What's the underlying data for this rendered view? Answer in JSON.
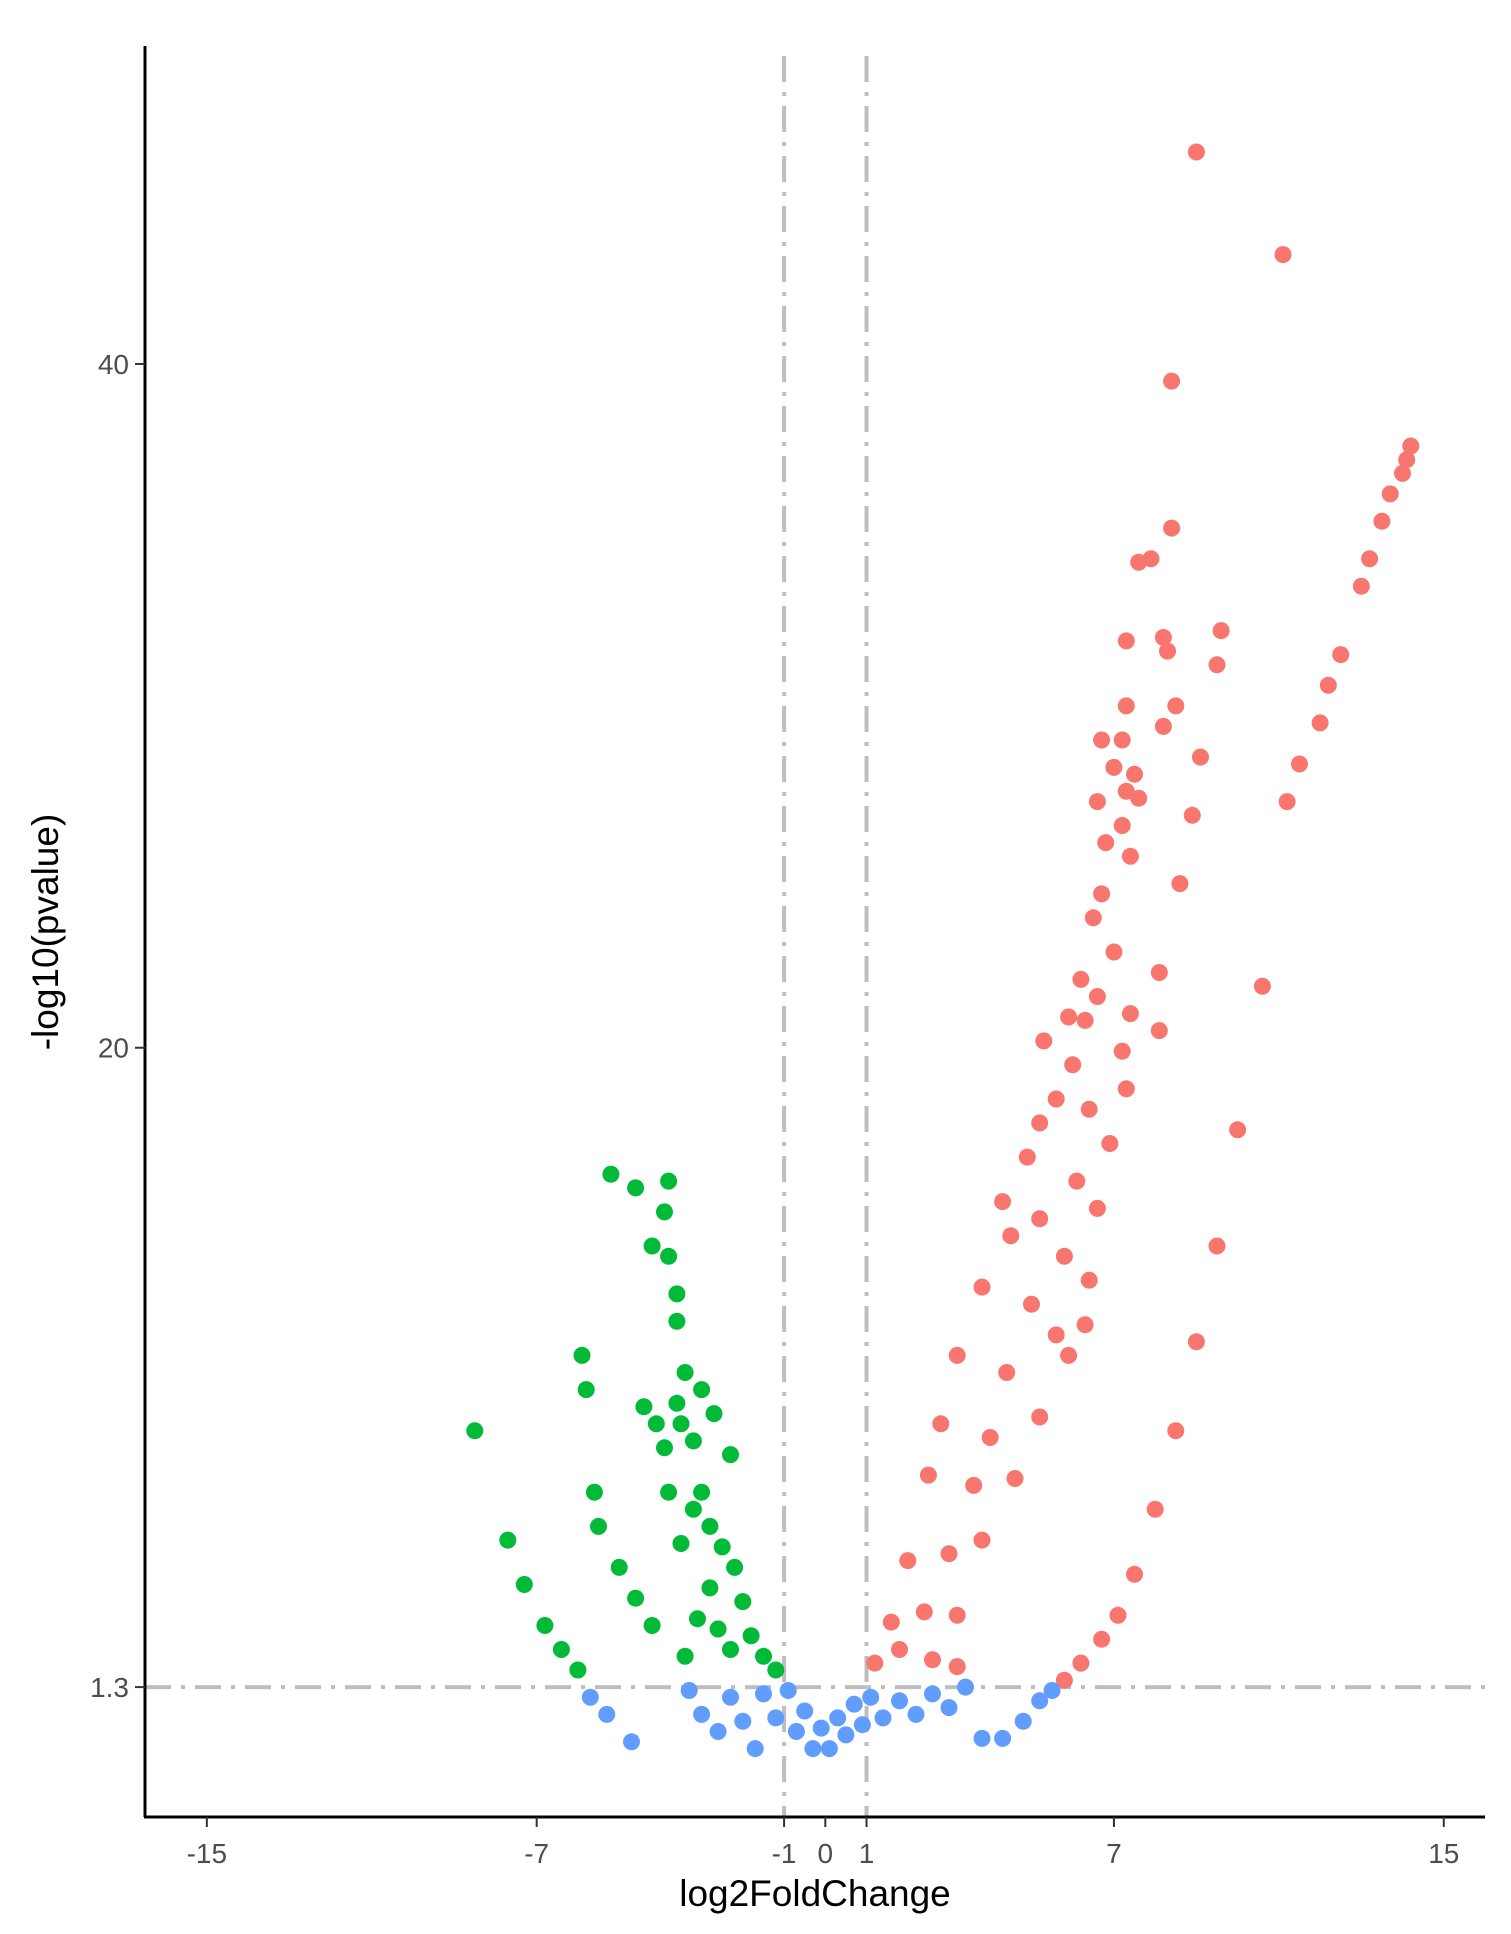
{
  "chart_data": {
    "type": "scatter",
    "xlabel": "log2FoldChange",
    "ylabel": "-log10(pvalue)",
    "xlim": [
      -16.5,
      16
    ],
    "ylim": [
      -2.5,
      49.3
    ],
    "xticks": [
      -15,
      -7,
      -1,
      0,
      1,
      7,
      15
    ],
    "yticks": [
      1.3,
      20,
      40
    ],
    "thresholds": {
      "x": [
        -1,
        1
      ],
      "y": [
        1.3
      ]
    },
    "grid": false,
    "legend": "none",
    "colors": {
      "up": "#F8766D",
      "down": "#00BA38",
      "nonsig": "#619CFF",
      "threshold_line": "#BEBEBE",
      "axis": "#000000"
    },
    "series": [
      {
        "category": "up",
        "values": [
          [
            9.0,
            46.2
          ],
          [
            11.1,
            43.2
          ],
          [
            8.4,
            39.5
          ],
          [
            8.4,
            35.2
          ],
          [
            7.6,
            34.2
          ],
          [
            7.9,
            34.3
          ],
          [
            8.2,
            32.0
          ],
          [
            8.3,
            31.6
          ],
          [
            7.3,
            31.9
          ],
          [
            9.6,
            32.2
          ],
          [
            9.5,
            31.2
          ],
          [
            8.5,
            30.0
          ],
          [
            8.2,
            29.4
          ],
          [
            9.1,
            28.5
          ],
          [
            7.3,
            30.0
          ],
          [
            7.2,
            29.0
          ],
          [
            6.7,
            29.0
          ],
          [
            7.0,
            28.2
          ],
          [
            7.5,
            28.0
          ],
          [
            7.3,
            27.5
          ],
          [
            7.6,
            27.3
          ],
          [
            6.6,
            27.2
          ],
          [
            8.9,
            26.8
          ],
          [
            7.2,
            26.5
          ],
          [
            6.8,
            26.0
          ],
          [
            7.4,
            25.6
          ],
          [
            8.6,
            24.8
          ],
          [
            6.7,
            24.5
          ],
          [
            6.5,
            23.8
          ],
          [
            8.1,
            22.2
          ],
          [
            7.0,
            22.8
          ],
          [
            6.2,
            22.0
          ],
          [
            6.6,
            21.5
          ],
          [
            7.4,
            21.0
          ],
          [
            6.3,
            20.8
          ],
          [
            8.1,
            20.5
          ],
          [
            5.3,
            20.2
          ],
          [
            5.9,
            20.9
          ],
          [
            7.2,
            19.9
          ],
          [
            6.0,
            19.5
          ],
          [
            5.6,
            18.5
          ],
          [
            6.4,
            18.2
          ],
          [
            7.3,
            18.8
          ],
          [
            5.2,
            17.8
          ],
          [
            6.9,
            17.2
          ],
          [
            4.9,
            16.8
          ],
          [
            6.1,
            16.1
          ],
          [
            4.3,
            15.5
          ],
          [
            5.2,
            15.0
          ],
          [
            6.6,
            15.3
          ],
          [
            4.5,
            14.5
          ],
          [
            5.8,
            13.9
          ],
          [
            6.4,
            13.2
          ],
          [
            3.8,
            13.0
          ],
          [
            5.0,
            12.5
          ],
          [
            5.6,
            11.6
          ],
          [
            3.2,
            11.0
          ],
          [
            4.4,
            10.5
          ],
          [
            5.9,
            11.0
          ],
          [
            6.3,
            11.9
          ],
          [
            2.8,
            9.0
          ],
          [
            4.0,
            8.6
          ],
          [
            5.2,
            9.2
          ],
          [
            2.5,
            7.5
          ],
          [
            3.6,
            7.2
          ],
          [
            4.6,
            7.4
          ],
          [
            2.0,
            5.0
          ],
          [
            3.0,
            5.2
          ],
          [
            3.8,
            5.6
          ],
          [
            1.6,
            3.2
          ],
          [
            2.4,
            3.5
          ],
          [
            3.2,
            3.4
          ],
          [
            1.2,
            2.0
          ],
          [
            1.8,
            2.4
          ],
          [
            2.6,
            2.1
          ],
          [
            3.2,
            1.9
          ],
          [
            5.8,
            1.5
          ],
          [
            6.2,
            2.0
          ],
          [
            6.7,
            2.7
          ],
          [
            7.1,
            3.4
          ],
          [
            7.5,
            4.6
          ],
          [
            8.0,
            6.5
          ],
          [
            8.5,
            8.8
          ],
          [
            9.0,
            11.4
          ],
          [
            9.5,
            14.2
          ],
          [
            10.0,
            17.6
          ],
          [
            10.6,
            21.8
          ],
          [
            11.2,
            27.2
          ],
          [
            11.5,
            28.3
          ],
          [
            12.0,
            29.5
          ],
          [
            12.2,
            30.6
          ],
          [
            12.5,
            31.5
          ],
          [
            13.0,
            33.5
          ],
          [
            13.2,
            34.3
          ],
          [
            13.5,
            35.4
          ],
          [
            13.7,
            36.2
          ],
          [
            14.0,
            36.8
          ],
          [
            14.1,
            37.2
          ],
          [
            14.2,
            37.6
          ]
        ]
      },
      {
        "category": "down",
        "values": [
          [
            -8.5,
            8.8
          ],
          [
            -7.7,
            5.6
          ],
          [
            -7.3,
            4.3
          ],
          [
            -6.8,
            3.1
          ],
          [
            -6.4,
            2.4
          ],
          [
            -6.0,
            1.8
          ],
          [
            -5.9,
            11.0
          ],
          [
            -5.8,
            10.0
          ],
          [
            -5.6,
            7.0
          ],
          [
            -5.5,
            6.0
          ],
          [
            -5.2,
            16.3
          ],
          [
            -4.6,
            15.9
          ],
          [
            -5.0,
            4.8
          ],
          [
            -4.6,
            3.9
          ],
          [
            -4.2,
            3.1
          ],
          [
            -4.2,
            14.2
          ],
          [
            -4.4,
            9.5
          ],
          [
            -4.1,
            9.0
          ],
          [
            -3.9,
            8.3
          ],
          [
            -3.8,
            7.0
          ],
          [
            -3.5,
            5.5
          ],
          [
            -3.9,
            15.2
          ],
          [
            -3.8,
            13.9
          ],
          [
            -3.6,
            12.8
          ],
          [
            -3.8,
            16.1
          ],
          [
            -3.6,
            12.0
          ],
          [
            -3.4,
            10.5
          ],
          [
            -3.6,
            9.6
          ],
          [
            -3.2,
            8.5
          ],
          [
            -3.5,
            9.0
          ],
          [
            -3.0,
            7.0
          ],
          [
            -2.8,
            6.0
          ],
          [
            -3.2,
            6.5
          ],
          [
            -2.5,
            5.4
          ],
          [
            -2.8,
            4.2
          ],
          [
            -2.2,
            4.8
          ],
          [
            -2.6,
            3.0
          ],
          [
            -2.0,
            3.8
          ],
          [
            -2.3,
            2.4
          ],
          [
            -1.8,
            2.8
          ],
          [
            -1.5,
            2.2
          ],
          [
            -1.2,
            1.8
          ],
          [
            -3.4,
            2.2
          ],
          [
            -3.1,
            3.3
          ],
          [
            -3.0,
            10.0
          ],
          [
            -2.7,
            9.3
          ],
          [
            -2.3,
            8.1
          ]
        ]
      },
      {
        "category": "nonsig",
        "values": [
          [
            -5.7,
            1.0
          ],
          [
            -5.3,
            0.5
          ],
          [
            -4.7,
            -0.3
          ],
          [
            -3.3,
            1.2
          ],
          [
            -3.0,
            0.5
          ],
          [
            -2.6,
            0.0
          ],
          [
            -2.3,
            1.0
          ],
          [
            -2.0,
            0.3
          ],
          [
            -1.7,
            -0.5
          ],
          [
            -1.5,
            1.1
          ],
          [
            -1.2,
            0.4
          ],
          [
            -0.9,
            1.2
          ],
          [
            -0.7,
            0.0
          ],
          [
            -0.5,
            0.6
          ],
          [
            -0.3,
            -0.5
          ],
          [
            -0.1,
            0.1
          ],
          [
            0.1,
            -0.5
          ],
          [
            0.3,
            0.4
          ],
          [
            0.5,
            -0.1
          ],
          [
            0.7,
            0.8
          ],
          [
            0.9,
            0.2
          ],
          [
            1.1,
            1.0
          ],
          [
            1.4,
            0.4
          ],
          [
            1.8,
            0.9
          ],
          [
            2.2,
            0.5
          ],
          [
            2.6,
            1.1
          ],
          [
            3.0,
            0.7
          ],
          [
            3.4,
            1.3
          ],
          [
            3.8,
            -0.2
          ],
          [
            4.3,
            -0.2
          ],
          [
            4.8,
            0.3
          ],
          [
            5.2,
            0.9
          ],
          [
            5.5,
            1.2
          ]
        ]
      }
    ]
  }
}
